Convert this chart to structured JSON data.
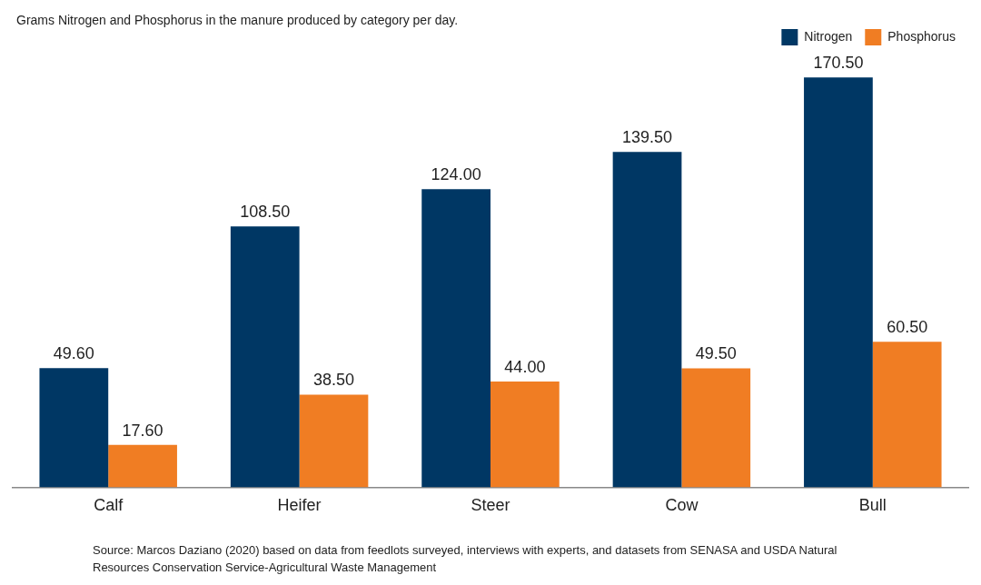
{
  "chart_data": {
    "type": "bar",
    "title": "Grams Nitrogen and Phosphorus in the manure produced by category per day.",
    "categories": [
      "Calf",
      "Heifer",
      "Steer",
      "Cow",
      "Bull"
    ],
    "series": [
      {
        "name": "Nitrogen",
        "color": "#003764",
        "values": [
          49.6,
          108.5,
          124.0,
          139.5,
          170.5
        ],
        "value_labels": [
          "49.60",
          "108.50",
          "124.00",
          "139.50",
          "170.50"
        ]
      },
      {
        "name": "Phosphorus",
        "color": "#f07d23",
        "values": [
          17.6,
          38.5,
          44.0,
          49.5,
          60.5
        ],
        "value_labels": [
          "17.60",
          "38.50",
          "44.00",
          "49.50",
          "60.50"
        ]
      }
    ],
    "legend": "top right",
    "grid": false,
    "tick_labels": "x",
    "annotations": [
      "Source: Marcos Daziano (2020) based on data from feedlots surveyed, interviews with experts, and datasets from SENASA and USDA Natural Resources Conservation Service-Agricultural Waste Management"
    ]
  }
}
